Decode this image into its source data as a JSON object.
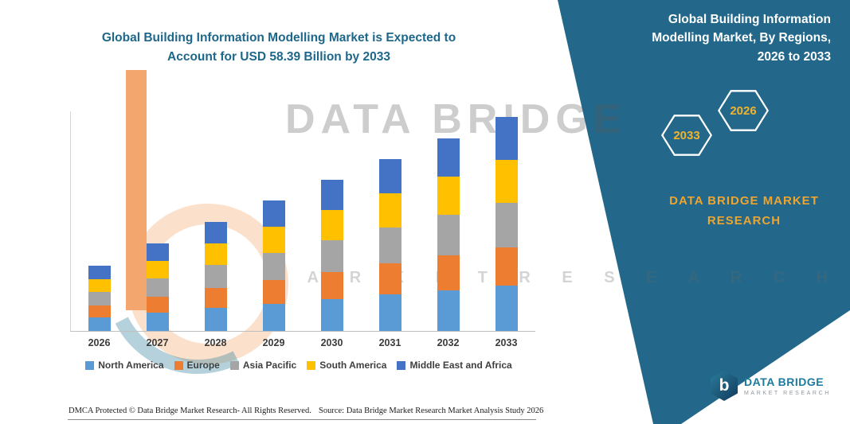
{
  "page": {
    "background": "#ffffff"
  },
  "main_title": {
    "line1": "Global Building Information Modelling Market is Expected to",
    "line2": "Account for USD 58.39 Billion by 2033"
  },
  "watermark": {
    "line1": "DATA BRIDGE",
    "line2": "M A R K E T   R E S E A R C H"
  },
  "panel": {
    "color": "#23688a",
    "title_line1": "Global Building Information",
    "title_line2": "Modelling Market, By Regions,",
    "title_line3": "2026 to 2033",
    "hexagons": [
      {
        "year": "2033"
      },
      {
        "year": "2026"
      }
    ],
    "brand_line1": "DATA BRIDGE MARKET",
    "brand_line2": "RESEARCH",
    "accent_gold": "#f2b32c"
  },
  "chart_data": {
    "type": "bar",
    "stacked": true,
    "title": "Global Building Information Modelling Market is Expected to Account for USD 58.39 Billion by 2033",
    "xlabel": "",
    "ylabel": "",
    "unit": "USD Billion",
    "ylim": [
      0,
      60
    ],
    "grid": false,
    "legend_position": "bottom",
    "categories": [
      "2026",
      "2027",
      "2028",
      "2029",
      "2030",
      "2031",
      "2032",
      "2033"
    ],
    "series": [
      {
        "name": "North America",
        "color": "#5b9bd5",
        "values": [
          3.7,
          5.0,
          6.3,
          7.5,
          8.7,
          9.9,
          11.1,
          12.3
        ]
      },
      {
        "name": "Europe",
        "color": "#ed7d31",
        "values": [
          3.2,
          4.3,
          5.4,
          6.4,
          7.4,
          8.5,
          9.5,
          10.5
        ]
      },
      {
        "name": "Asia Pacific",
        "color": "#a5a5a5",
        "values": [
          3.7,
          5.0,
          6.3,
          7.5,
          8.7,
          9.9,
          11.1,
          12.3
        ]
      },
      {
        "name": "South America",
        "color": "#ffc000",
        "values": [
          3.6,
          4.8,
          6.0,
          7.1,
          8.3,
          9.4,
          10.5,
          11.7
        ]
      },
      {
        "name": "Middle East and Africa",
        "color": "#4472c4",
        "values": [
          3.6,
          4.9,
          5.8,
          7.2,
          8.2,
          9.3,
          10.5,
          11.59
        ]
      }
    ],
    "totals": [
      17.8,
      24.0,
      29.8,
      35.7,
      41.3,
      47.0,
      52.7,
      58.39
    ],
    "callout_value": "USD 58.39 Billion by 2033"
  },
  "footer": {
    "dmca": "DMCA Protected © Data Bridge Market Research-  All Rights Reserved.",
    "source": "Source: Data Bridge Market Research  Market Analysis Study 2026"
  },
  "logo": {
    "glyph": "b",
    "name": "DATA BRIDGE",
    "tagline": "MARKET RESEARCH"
  }
}
